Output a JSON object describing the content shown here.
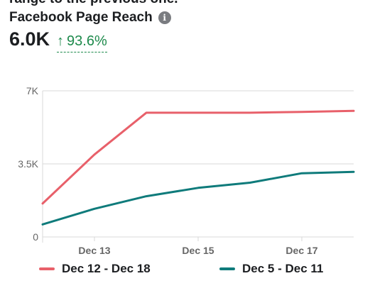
{
  "header": {
    "clipped_text": "range to the previous one.",
    "title": "Facebook Page Reach",
    "metric": "6.0K",
    "change_arrow": "↑",
    "change": "93.6%"
  },
  "colors": {
    "series_current": "#e8606a",
    "series_previous": "#0f7b7b",
    "grid": "#d9d9d9",
    "tick": "#666666",
    "positive": "#1e8a4c"
  },
  "chart_data": {
    "type": "line",
    "x": [
      1,
      2,
      3,
      4,
      5,
      6,
      7
    ],
    "x_tick_labels": [
      {
        "x": 2,
        "label": "Dec 13"
      },
      {
        "x": 4,
        "label": "Dec 15"
      },
      {
        "x": 6,
        "label": "Dec 17"
      }
    ],
    "y_tick_values": [
      0,
      3500,
      7000
    ],
    "y_tick_labels": [
      "0",
      "3.5K",
      "7K"
    ],
    "ylim": [
      0,
      7000
    ],
    "grid": true,
    "legend_position": "bottom",
    "series": [
      {
        "name": "Dec 12 - Dec 18",
        "color": "#e8606a",
        "values": [
          1600,
          3950,
          5950,
          5950,
          5950,
          5990,
          6040
        ]
      },
      {
        "name": "Dec 5 - Dec 11",
        "color": "#0f7b7b",
        "values": [
          600,
          1350,
          1950,
          2350,
          2600,
          3050,
          3120
        ]
      }
    ]
  }
}
